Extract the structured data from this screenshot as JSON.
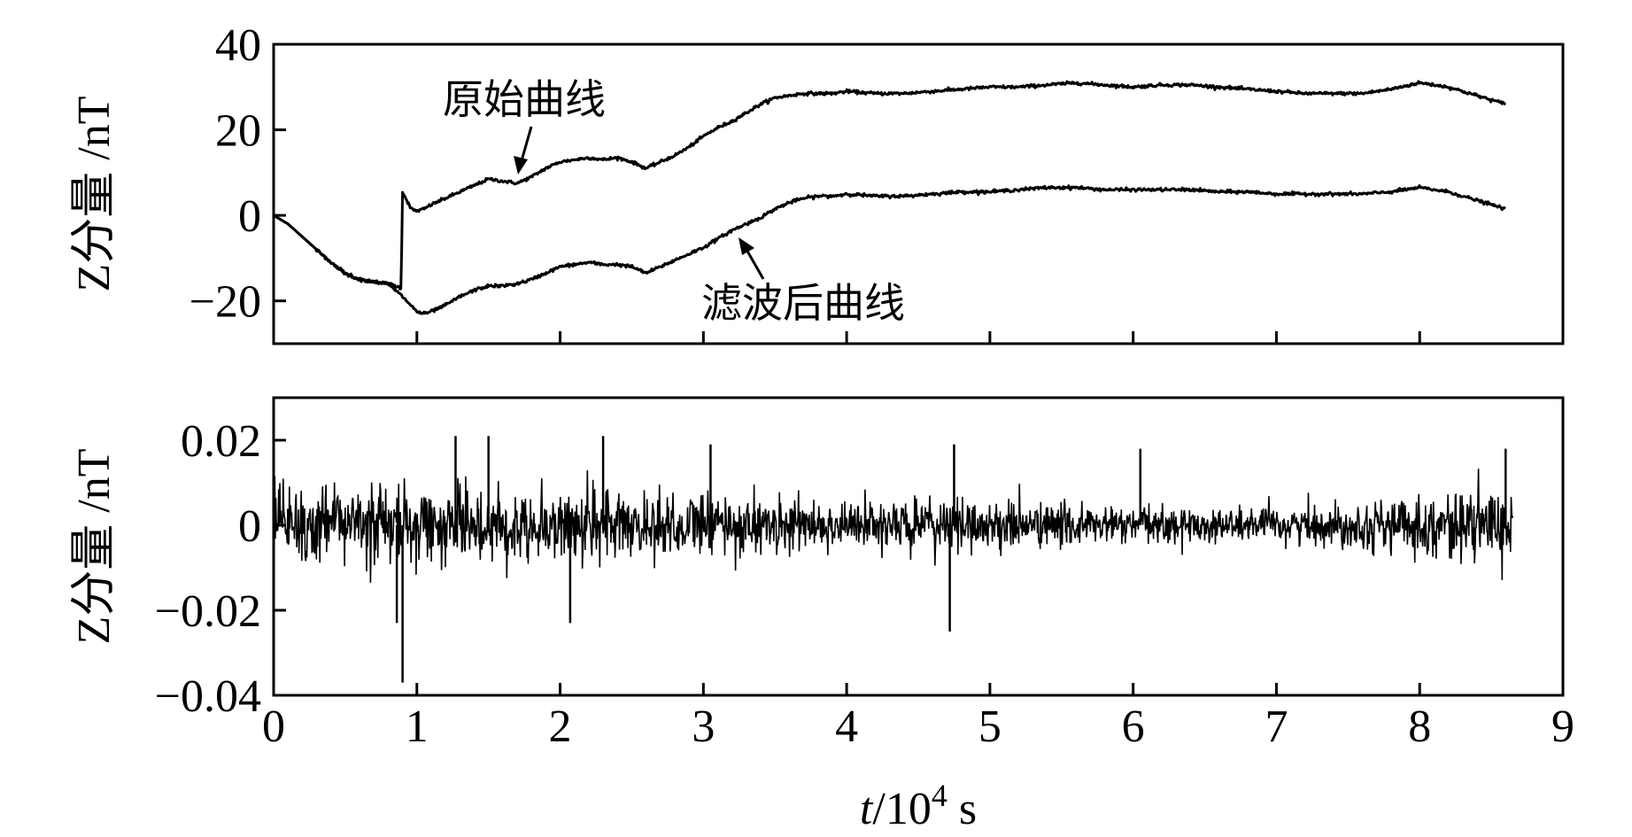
{
  "chart_data": [
    {
      "type": "line",
      "ylabel": "Z分量 /nT",
      "xlim": [
        0,
        9
      ],
      "ylim": [
        -30,
        40
      ],
      "yticks": [
        40,
        20,
        0,
        -20
      ],
      "ytick_labels": [
        "40",
        "20",
        "0",
        "−20"
      ],
      "grid": false,
      "annotations": [
        {
          "text": "原始曲线",
          "target": [
            1.7,
            8
          ]
        },
        {
          "text": "滤波后曲线",
          "target": [
            3.25,
            -5
          ]
        }
      ],
      "series": [
        {
          "name": "原始曲线",
          "x": [
            0,
            0.1,
            0.2,
            0.3,
            0.4,
            0.5,
            0.6,
            0.7,
            0.8,
            0.85,
            0.89,
            0.9,
            0.93,
            0.96,
            1.0,
            1.05,
            1.1,
            1.2,
            1.3,
            1.4,
            1.5,
            1.6,
            1.7,
            1.8,
            1.9,
            2.0,
            2.1,
            2.2,
            2.3,
            2.4,
            2.5,
            2.6,
            2.7,
            2.8,
            2.9,
            3.0,
            3.1,
            3.2,
            3.3,
            3.4,
            3.5,
            3.6,
            3.7,
            3.8,
            3.9,
            4.0,
            4.2,
            4.4,
            4.6,
            4.8,
            5.0,
            5.2,
            5.4,
            5.6,
            5.8,
            6.0,
            6.2,
            6.4,
            6.6,
            6.8,
            7.0,
            7.2,
            7.4,
            7.6,
            7.8,
            8.0,
            8.2,
            8.4,
            8.6
          ],
          "y": [
            0,
            -2,
            -5,
            -8,
            -11,
            -13.5,
            -15,
            -15.5,
            -16,
            -16.5,
            -17,
            5.5,
            3.5,
            1.5,
            1,
            1.5,
            2.5,
            4,
            5.5,
            7,
            8.5,
            8,
            7.5,
            9,
            11,
            12.5,
            13,
            13.5,
            13,
            13.5,
            12.5,
            11,
            12.5,
            14,
            16,
            18.5,
            20.5,
            22,
            24,
            26,
            27.5,
            28,
            28.5,
            28.5,
            28.5,
            29,
            28.5,
            28.5,
            29,
            29.5,
            30,
            30,
            30.5,
            31,
            30.5,
            30,
            30.5,
            30.5,
            30,
            29.5,
            29,
            28.5,
            28.5,
            28.5,
            29.5,
            31,
            30,
            28,
            26
          ]
        },
        {
          "name": "滤波后曲线",
          "x": [
            0,
            0.1,
            0.2,
            0.3,
            0.4,
            0.5,
            0.6,
            0.7,
            0.8,
            0.9,
            1.0,
            1.05,
            1.1,
            1.2,
            1.3,
            1.4,
            1.5,
            1.6,
            1.7,
            1.8,
            1.9,
            2.0,
            2.1,
            2.2,
            2.3,
            2.4,
            2.5,
            2.6,
            2.7,
            2.8,
            2.9,
            3.0,
            3.1,
            3.2,
            3.3,
            3.4,
            3.5,
            3.6,
            3.7,
            3.8,
            3.9,
            4.0,
            4.2,
            4.4,
            4.6,
            4.8,
            5.0,
            5.2,
            5.4,
            5.6,
            5.8,
            6.0,
            6.2,
            6.4,
            6.6,
            6.8,
            7.0,
            7.2,
            7.4,
            7.6,
            7.8,
            8.0,
            8.2,
            8.4,
            8.6
          ],
          "y": [
            0,
            -2,
            -5,
            -8,
            -11,
            -13.5,
            -15,
            -15.5,
            -16,
            -19,
            -22.5,
            -23,
            -22.5,
            -21,
            -19,
            -17.5,
            -16.5,
            -16.5,
            -16,
            -15,
            -13.5,
            -12,
            -11.5,
            -11,
            -11.5,
            -11.5,
            -12,
            -13.5,
            -12,
            -10.5,
            -9,
            -7.5,
            -5.5,
            -3.5,
            -2,
            -0.5,
            1.5,
            3,
            4,
            4.5,
            4.5,
            5,
            4.5,
            4.5,
            5,
            5.5,
            5.5,
            6,
            6.5,
            6.5,
            6,
            6,
            6,
            6,
            5.5,
            5.5,
            5,
            5,
            5,
            5,
            5.5,
            6.5,
            5.5,
            3.5,
            1.5
          ]
        }
      ]
    },
    {
      "type": "line",
      "ylabel": "Z分量 /nT",
      "xlabel_prefix": "t",
      "xlabel_mid": "/10",
      "xlabel_sup": "4",
      "xlabel_suffix": " s",
      "xlim": [
        0,
        9
      ],
      "ylim": [
        -0.04,
        0.03
      ],
      "xticks": [
        0,
        1,
        2,
        3,
        4,
        5,
        6,
        7,
        8,
        9
      ],
      "xtick_labels": [
        "0",
        "1",
        "2",
        "3",
        "4",
        "5",
        "6",
        "7",
        "8",
        "9"
      ],
      "yticks": [
        0.02,
        0,
        -0.02,
        -0.04
      ],
      "ytick_labels": [
        "0.02",
        "0",
        "−0.02",
        "−0.04"
      ],
      "grid": false,
      "series": [
        {
          "x_range": [
            0,
            8.65
          ],
          "noise_envelope": {
            "x": [
              0,
              0.5,
              1.0,
              1.5,
              2.0,
              2.5,
              3.0,
              3.5,
              4.0,
              4.5,
              5.0,
              5.5,
              6.0,
              6.5,
              7.0,
              7.5,
              8.0,
              8.3,
              8.65
            ],
            "amplitude": [
              0.012,
              0.011,
              0.01,
              0.01,
              0.011,
              0.01,
              0.009,
              0.008,
              0.007,
              0.007,
              0.007,
              0.006,
              0.005,
              0.005,
              0.005,
              0.006,
              0.008,
              0.009,
              0.01
            ]
          },
          "spikes": [
            {
              "x": 0.9,
              "y": -0.037
            },
            {
              "x": 0.86,
              "y": -0.023
            },
            {
              "x": 2.07,
              "y": -0.023
            },
            {
              "x": 4.72,
              "y": -0.025
            },
            {
              "x": 1.27,
              "y": 0.021
            },
            {
              "x": 1.5,
              "y": 0.021
            },
            {
              "x": 2.3,
              "y": 0.021
            },
            {
              "x": 3.05,
              "y": 0.019
            },
            {
              "x": 4.75,
              "y": 0.019
            },
            {
              "x": 6.05,
              "y": 0.018
            },
            {
              "x": 8.6,
              "y": 0.018
            }
          ]
        }
      ]
    }
  ]
}
